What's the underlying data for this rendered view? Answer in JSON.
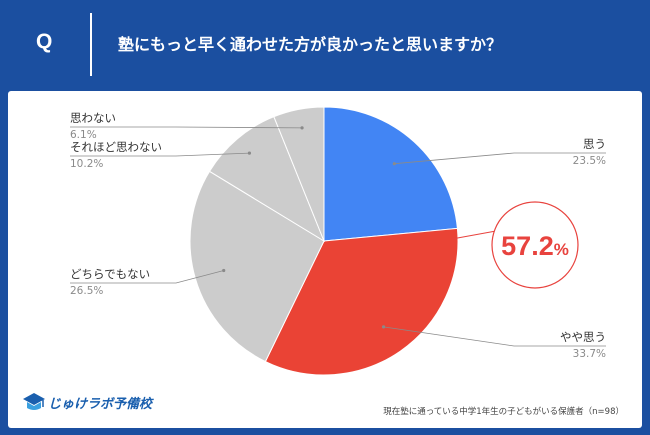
{
  "header": {
    "q_label": "Q",
    "question": "塾にもっと早く通わせた方が良かったと思いますか？"
  },
  "chart_data": {
    "type": "pie",
    "start": "12 o'clock, clockwise",
    "slices": [
      {
        "label": "思う",
        "value": 23.5,
        "display": "23.5%",
        "color": "#4285f4"
      },
      {
        "label": "やや思う",
        "value": 33.7,
        "display": "33.7%",
        "color": "#ea4335"
      },
      {
        "label": "どちらでもない",
        "value": 26.5,
        "display": "26.5%",
        "color": "#cccccc"
      },
      {
        "label": "それほど思わない",
        "value": 10.2,
        "display": "10.2%",
        "color": "#cccccc"
      },
      {
        "label": "思わない",
        "value": 6.1,
        "display": "6.1%",
        "color": "#cccccc"
      }
    ],
    "callout": {
      "number": "57.2",
      "unit": "%",
      "color": "#e8433e"
    }
  },
  "logo": {
    "text": "じゅけラボ予備校",
    "color": "#1a5fae"
  },
  "footnote": "現在塾に通っている中学1年生の子どもがいる保護者（n=98）"
}
